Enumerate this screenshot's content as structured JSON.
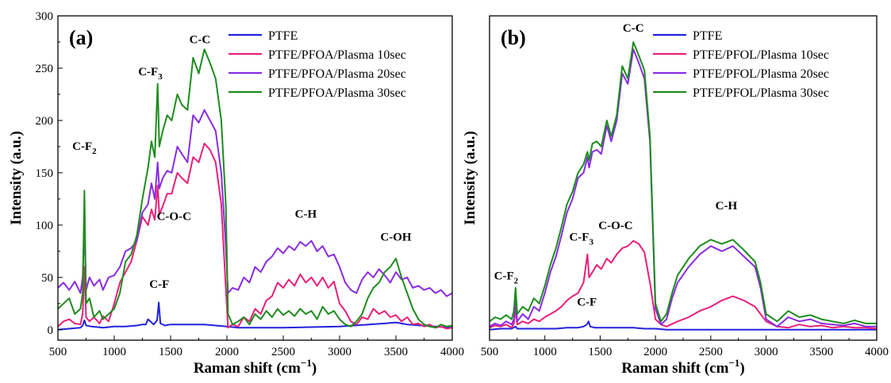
{
  "chart_data": [
    {
      "type": "line",
      "panel_label": "(a)",
      "xlabel": "Raman shift (cm⁻¹)",
      "ylabel": "Intensity (a.u.)",
      "xlim": [
        500,
        4000
      ],
      "ylim": [
        -10,
        300
      ],
      "x_ticks": [
        500,
        1000,
        1500,
        2000,
        2500,
        3000,
        3500,
        4000
      ],
      "y_ticks": [
        0,
        50,
        100,
        150,
        200,
        250,
        300
      ],
      "show_y_tick_labels": true,
      "grid": false,
      "legend_position": "top-right",
      "annotations": [
        {
          "text": "C-F₂",
          "x": 735,
          "y": 172
        },
        {
          "text": "C-F₃",
          "x": 1320,
          "y": 243
        },
        {
          "text": "C-C",
          "x": 1760,
          "y": 274
        },
        {
          "text": "C-O-C",
          "x": 1530,
          "y": 105
        },
        {
          "text": "C-F",
          "x": 1400,
          "y": 40
        },
        {
          "text": "C-H",
          "x": 2700,
          "y": 107
        },
        {
          "text": "C-OH",
          "x": 3500,
          "y": 85
        }
      ],
      "series": [
        {
          "name": "PTFE",
          "color": "#2222dd",
          "x": [
            500,
            600,
            700,
            720,
            735,
            750,
            800,
            900,
            1000,
            1100,
            1200,
            1250,
            1280,
            1300,
            1350,
            1380,
            1395,
            1410,
            1450,
            1500,
            1600,
            1700,
            1800,
            1900,
            2000,
            2100,
            2500,
            3000,
            3400,
            3500,
            3600,
            4000
          ],
          "y": [
            0,
            1,
            2,
            4,
            9,
            4,
            3,
            2,
            3,
            3,
            4,
            5,
            5,
            10,
            5,
            9,
            26,
            6,
            4,
            5,
            5,
            5,
            5,
            4,
            3,
            2,
            2,
            3,
            6,
            7,
            5,
            2
          ]
        },
        {
          "name": "PTFE/PFOA/Plasma 10sec",
          "color": "#e8207a",
          "x": [
            500,
            550,
            600,
            650,
            700,
            720,
            735,
            750,
            780,
            820,
            870,
            900,
            950,
            1000,
            1050,
            1100,
            1150,
            1200,
            1250,
            1300,
            1330,
            1360,
            1385,
            1400,
            1430,
            1470,
            1510,
            1560,
            1600,
            1650,
            1700,
            1750,
            1800,
            1850,
            1900,
            1950,
            1990,
            2010,
            2050,
            2100,
            2150,
            2200,
            2250,
            2300,
            2350,
            2400,
            2450,
            2500,
            2550,
            2600,
            2650,
            2700,
            2750,
            2800,
            2850,
            2900,
            2950,
            3000,
            3050,
            3100,
            3150,
            3200,
            3250,
            3300,
            3350,
            3400,
            3450,
            3500,
            3550,
            3600,
            3650,
            3700,
            3750,
            3800,
            3850,
            3900,
            3950,
            4000
          ],
          "y": [
            3,
            8,
            10,
            6,
            5,
            15,
            60,
            12,
            8,
            12,
            6,
            13,
            8,
            25,
            45,
            55,
            65,
            85,
            108,
            100,
            115,
            105,
            138,
            110,
            118,
            130,
            130,
            150,
            145,
            140,
            165,
            160,
            178,
            172,
            160,
            120,
            40,
            2,
            5,
            3,
            12,
            8,
            20,
            15,
            28,
            32,
            45,
            40,
            48,
            42,
            53,
            45,
            50,
            42,
            50,
            40,
            46,
            25,
            18,
            8,
            5,
            12,
            10,
            20,
            15,
            18,
            12,
            14,
            8,
            12,
            5,
            6,
            3,
            5,
            2,
            3,
            1,
            2
          ]
        },
        {
          "name": "PTFE/PFOA/Plasma 20sec",
          "color": "#8a2be2",
          "x": [
            500,
            550,
            600,
            650,
            700,
            720,
            735,
            750,
            780,
            820,
            870,
            900,
            950,
            1000,
            1050,
            1100,
            1150,
            1200,
            1250,
            1300,
            1330,
            1360,
            1385,
            1400,
            1430,
            1470,
            1510,
            1560,
            1600,
            1650,
            1700,
            1750,
            1800,
            1850,
            1900,
            1950,
            1990,
            2010,
            2050,
            2100,
            2150,
            2200,
            2250,
            2300,
            2350,
            2400,
            2450,
            2500,
            2550,
            2600,
            2650,
            2700,
            2750,
            2800,
            2850,
            2900,
            2950,
            3000,
            3050,
            3100,
            3150,
            3200,
            3250,
            3300,
            3350,
            3400,
            3450,
            3500,
            3550,
            3600,
            3650,
            3700,
            3750,
            3800,
            3850,
            3900,
            3950,
            4000
          ],
          "y": [
            40,
            45,
            38,
            46,
            35,
            50,
            98,
            38,
            50,
            42,
            48,
            38,
            50,
            52,
            60,
            75,
            78,
            85,
            112,
            120,
            140,
            125,
            160,
            135,
            145,
            152,
            150,
            175,
            168,
            160,
            205,
            198,
            210,
            200,
            190,
            150,
            80,
            35,
            40,
            38,
            50,
            45,
            60,
            55,
            65,
            70,
            78,
            73,
            80,
            76,
            84,
            80,
            85,
            75,
            80,
            70,
            72,
            60,
            45,
            38,
            35,
            48,
            55,
            50,
            58,
            52,
            45,
            55,
            48,
            50,
            40,
            42,
            38,
            40,
            35,
            38,
            32,
            35
          ]
        },
        {
          "name": "PTFE/PFOA/Plasma 30sec",
          "color": "#1e8c1e",
          "x": [
            500,
            550,
            600,
            650,
            700,
            720,
            735,
            750,
            780,
            820,
            870,
            900,
            950,
            1000,
            1050,
            1100,
            1150,
            1200,
            1250,
            1300,
            1330,
            1360,
            1385,
            1400,
            1430,
            1470,
            1510,
            1560,
            1600,
            1650,
            1700,
            1750,
            1800,
            1850,
            1900,
            1950,
            1990,
            2010,
            2050,
            2100,
            2150,
            2200,
            2250,
            2300,
            2350,
            2400,
            2450,
            2500,
            2550,
            2600,
            2650,
            2700,
            2750,
            2800,
            2850,
            2900,
            2950,
            3000,
            3050,
            3100,
            3150,
            3200,
            3250,
            3300,
            3350,
            3400,
            3450,
            3500,
            3550,
            3600,
            3650,
            3700,
            3750,
            3800,
            3850,
            3900,
            3950,
            4000
          ],
          "y": [
            20,
            25,
            30,
            15,
            20,
            35,
            133,
            25,
            30,
            12,
            18,
            10,
            15,
            20,
            35,
            65,
            72,
            90,
            125,
            155,
            180,
            165,
            235,
            175,
            190,
            205,
            200,
            225,
            215,
            210,
            260,
            245,
            268,
            255,
            240,
            200,
            120,
            15,
            5,
            8,
            12,
            5,
            15,
            10,
            18,
            12,
            20,
            14,
            18,
            13,
            20,
            15,
            18,
            10,
            22,
            15,
            18,
            10,
            5,
            3,
            8,
            15,
            30,
            40,
            45,
            55,
            60,
            68,
            50,
            35,
            20,
            10,
            5,
            3,
            2,
            5,
            3,
            4
          ]
        }
      ]
    },
    {
      "type": "line",
      "panel_label": "(b)",
      "xlabel": "Raman shift (cm⁻¹)",
      "ylabel": "Intensity (a.u.)",
      "xlim": [
        500,
        4000
      ],
      "ylim": [
        -10,
        300
      ],
      "x_ticks": [
        500,
        1000,
        1500,
        2000,
        2500,
        3000,
        3500,
        4000
      ],
      "y_ticks": [],
      "show_y_tick_labels": false,
      "grid": false,
      "legend_position": "top-right",
      "annotations": [
        {
          "text": "C-F₂",
          "x": 650,
          "y": 48
        },
        {
          "text": "C-F₃",
          "x": 1330,
          "y": 85
        },
        {
          "text": "C-O-C",
          "x": 1640,
          "y": 96
        },
        {
          "text": "C-C",
          "x": 1800,
          "y": 285
        },
        {
          "text": "C-F",
          "x": 1380,
          "y": 23
        },
        {
          "text": "C-H",
          "x": 2640,
          "y": 115
        }
      ],
      "series": [
        {
          "name": "PTFE",
          "color": "#2222dd",
          "x": [
            500,
            600,
            700,
            735,
            750,
            800,
            900,
            1000,
            1100,
            1200,
            1300,
            1350,
            1380,
            1395,
            1410,
            1450,
            1500,
            1600,
            1700,
            1800,
            1900,
            2000,
            2100,
            2500,
            3000,
            3500,
            4000
          ],
          "y": [
            0,
            1,
            1,
            3,
            1,
            1,
            1,
            1,
            1,
            2,
            2,
            3,
            5,
            8,
            3,
            2,
            2,
            2,
            2,
            2,
            1,
            1,
            0,
            0,
            0,
            0,
            0
          ]
        },
        {
          "name": "PTFE/PFOL/Plasma 10sec",
          "color": "#e8207a",
          "x": [
            500,
            550,
            600,
            650,
            700,
            720,
            735,
            750,
            800,
            850,
            900,
            950,
            1000,
            1050,
            1100,
            1150,
            1200,
            1250,
            1300,
            1350,
            1385,
            1400,
            1430,
            1470,
            1510,
            1560,
            1600,
            1650,
            1700,
            1750,
            1800,
            1850,
            1900,
            1950,
            2000,
            2050,
            2100,
            2200,
            2300,
            2400,
            2500,
            2600,
            2700,
            2800,
            2900,
            2950,
            3000,
            3100,
            3200,
            3300,
            3400,
            3500,
            3600,
            3700,
            3800,
            3900,
            4000
          ],
          "y": [
            2,
            4,
            3,
            5,
            2,
            6,
            20,
            5,
            8,
            6,
            10,
            8,
            12,
            15,
            18,
            22,
            28,
            32,
            35,
            45,
            72,
            50,
            55,
            62,
            58,
            68,
            64,
            72,
            78,
            80,
            85,
            82,
            74,
            45,
            10,
            5,
            3,
            8,
            12,
            18,
            22,
            28,
            32,
            28,
            22,
            15,
            8,
            3,
            2,
            5,
            3,
            4,
            2,
            3,
            2,
            2,
            1
          ]
        },
        {
          "name": "PTFE/PFOL/Plasma 20sec",
          "color": "#8a2be2",
          "x": [
            500,
            550,
            600,
            650,
            700,
            720,
            735,
            750,
            800,
            850,
            900,
            950,
            1000,
            1050,
            1100,
            1150,
            1200,
            1250,
            1300,
            1350,
            1385,
            1400,
            1430,
            1470,
            1510,
            1560,
            1600,
            1650,
            1700,
            1750,
            1800,
            1850,
            1900,
            1950,
            2000,
            2050,
            2100,
            2150,
            2200,
            2300,
            2400,
            2500,
            2600,
            2700,
            2800,
            2900,
            2950,
            3000,
            3100,
            3200,
            3300,
            3400,
            3500,
            3600,
            3700,
            3800,
            3900,
            4000
          ],
          "y": [
            3,
            6,
            4,
            8,
            5,
            10,
            28,
            8,
            15,
            10,
            22,
            18,
            35,
            55,
            70,
            90,
            112,
            125,
            145,
            150,
            165,
            155,
            170,
            172,
            168,
            195,
            180,
            200,
            245,
            235,
            268,
            255,
            240,
            180,
            20,
            5,
            10,
            30,
            45,
            60,
            72,
            80,
            75,
            80,
            70,
            60,
            40,
            10,
            3,
            12,
            8,
            10,
            6,
            5,
            4,
            6,
            3,
            3
          ]
        },
        {
          "name": "PTFE/PFOL/Plasma 30sec",
          "color": "#1e8c1e",
          "x": [
            500,
            550,
            600,
            650,
            700,
            720,
            735,
            750,
            800,
            850,
            900,
            950,
            1000,
            1050,
            1100,
            1150,
            1200,
            1250,
            1300,
            1350,
            1385,
            1400,
            1430,
            1470,
            1510,
            1560,
            1600,
            1650,
            1700,
            1750,
            1800,
            1850,
            1900,
            1950,
            2000,
            2050,
            2100,
            2150,
            2200,
            2300,
            2400,
            2500,
            2600,
            2700,
            2800,
            2900,
            2950,
            3000,
            3100,
            3200,
            3300,
            3400,
            3500,
            3600,
            3700,
            3800,
            3900,
            4000
          ],
          "y": [
            8,
            12,
            10,
            14,
            10,
            18,
            40,
            15,
            22,
            18,
            30,
            25,
            42,
            62,
            78,
            98,
            120,
            132,
            150,
            158,
            170,
            162,
            178,
            180,
            175,
            200,
            185,
            205,
            252,
            240,
            275,
            262,
            248,
            185,
            25,
            8,
            15,
            35,
            52,
            68,
            80,
            86,
            82,
            86,
            76,
            65,
            45,
            15,
            8,
            18,
            12,
            14,
            10,
            8,
            6,
            9,
            6,
            6
          ]
        }
      ]
    }
  ]
}
